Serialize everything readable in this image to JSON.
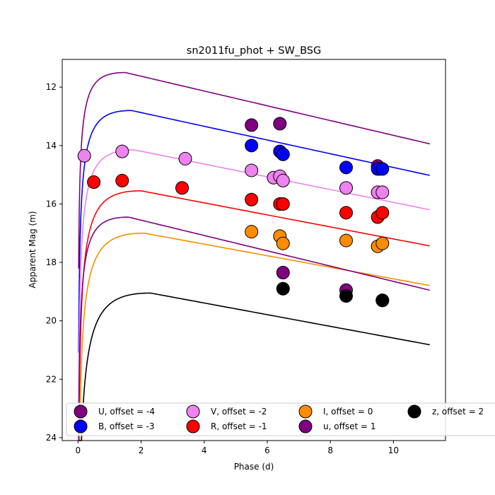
{
  "chart_data": {
    "type": "scatter",
    "title": "sn2011fu_phot + SW_BSG",
    "xlabel": "Phase (d)",
    "ylabel": "Apparent Mag (m)",
    "xlim": [
      -0.5,
      11.65
    ],
    "ylim": [
      24.1,
      11.05
    ],
    "y_inverted": true,
    "grid": false,
    "legend_placement": "bottom",
    "x_ticks": [
      0,
      2,
      4,
      6,
      8,
      10
    ],
    "x_tick_labels": [
      "0",
      "2",
      "4",
      "6",
      "8",
      "10"
    ],
    "y_ticks": [
      12,
      14,
      16,
      18,
      20,
      22,
      24
    ],
    "y_tick_labels": [
      "12",
      "14",
      "16",
      "18",
      "20",
      "22",
      "24"
    ],
    "series": [
      {
        "name": "U, offset = -4",
        "color": "#800080",
        "points": [
          [
            5.5,
            13.3
          ],
          [
            6.4,
            13.25
          ],
          [
            9.5,
            14.7
          ],
          [
            9.55,
            14.8
          ]
        ],
        "model": {
          "m0": 11.5,
          "peak": 1.5,
          "rise": 0.36,
          "slope": 0.253,
          "start": 0.02
        }
      },
      {
        "name": "B, offset = -3",
        "color": "#0000ff",
        "points": [
          [
            5.5,
            14.0
          ],
          [
            6.4,
            14.2
          ],
          [
            6.5,
            14.3
          ],
          [
            8.5,
            14.75
          ],
          [
            9.5,
            14.8
          ],
          [
            9.65,
            14.8
          ]
        ],
        "model": {
          "m0": 12.8,
          "peak": 1.7,
          "rise": 0.42,
          "slope": 0.235,
          "start": 0.02
        }
      },
      {
        "name": "V, offset = -2",
        "color": "#ee82ee",
        "points": [
          [
            0.2,
            14.35
          ],
          [
            1.4,
            14.2
          ],
          [
            3.4,
            14.45
          ],
          [
            5.5,
            14.85
          ],
          [
            6.2,
            15.1
          ],
          [
            6.4,
            15.05
          ],
          [
            6.5,
            15.2
          ],
          [
            8.5,
            15.45
          ],
          [
            9.5,
            15.6
          ],
          [
            9.65,
            15.6
          ]
        ],
        "model": {
          "m0": 14.15,
          "peak": 1.8,
          "rise": 0.44,
          "slope": 0.219,
          "start": 0.02
        }
      },
      {
        "name": "R, offset = -1",
        "color": "#ff0000",
        "points": [
          [
            0.5,
            15.25
          ],
          [
            1.4,
            15.2
          ],
          [
            3.3,
            15.45
          ],
          [
            5.5,
            15.85
          ],
          [
            6.4,
            16.0
          ],
          [
            6.5,
            16.0
          ],
          [
            8.5,
            16.3
          ],
          [
            9.5,
            16.45
          ],
          [
            9.65,
            16.3
          ]
        ],
        "model": {
          "m0": 15.55,
          "peak": 2.0,
          "rise": 0.48,
          "slope": 0.206,
          "start": 0.02
        }
      },
      {
        "name": "I, offset = 0",
        "color": "#ff8c00",
        "points": [
          [
            5.5,
            16.95
          ],
          [
            6.4,
            17.1
          ],
          [
            6.5,
            17.35
          ],
          [
            8.5,
            17.25
          ],
          [
            9.5,
            17.45
          ],
          [
            9.65,
            17.35
          ]
        ],
        "model": {
          "m0": 17.0,
          "peak": 2.1,
          "rise": 0.5,
          "slope": 0.198,
          "start": 0.02
        }
      },
      {
        "name": "u, offset = 1",
        "color": "#800080",
        "points": [
          [
            6.5,
            18.35
          ],
          [
            8.5,
            18.95
          ],
          [
            9.65,
            19.3
          ]
        ],
        "model": {
          "m0": 16.45,
          "peak": 1.6,
          "rise": 0.4,
          "slope": 0.262,
          "start": 0.02
        }
      },
      {
        "name": "z, offset = 2",
        "color": "#000000",
        "points": [
          [
            6.5,
            18.9
          ],
          [
            8.5,
            19.15
          ],
          [
            9.65,
            19.3
          ]
        ],
        "model": {
          "m0": 19.05,
          "peak": 2.3,
          "rise": 0.55,
          "slope": 0.2,
          "start": 0.02
        }
      }
    ]
  }
}
